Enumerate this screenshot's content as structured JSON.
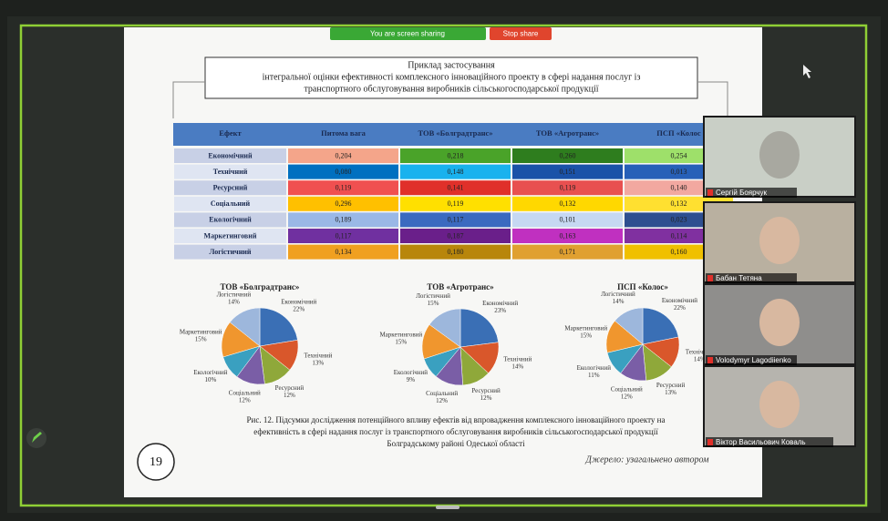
{
  "zoom_bar": {
    "sharing": "You are screen sharing",
    "stop": "Stop share"
  },
  "slide": {
    "title_lines": [
      "Приклад застосування",
      "інтегральної оцінки ефективності комплексного інноваційного проекту в сфері надання послуг із",
      "транспортного обслуговування виробників сільськогосподарської продукції"
    ],
    "table": {
      "header": [
        "Ефект",
        "Питома вага",
        "ТОВ «Болградтранс»",
        "ТОВ «Агротранс»",
        "ПСП «Колос"
      ],
      "rows": [
        [
          "Економічний",
          "0,204",
          "0,218",
          "0,260",
          "0,254"
        ],
        [
          "Технічний",
          "0,080",
          "0,148",
          "0,151",
          "0,013"
        ],
        [
          "Ресурсний",
          "0,119",
          "0,141",
          "0,119",
          "0,140"
        ],
        [
          "Соціальний",
          "0,296",
          "0,119",
          "0,132",
          "0,132"
        ],
        [
          "Екологічний",
          "0,189",
          "0,117",
          "0,101",
          "0,023"
        ],
        [
          "Маркетинговий",
          "0,117",
          "0,187",
          "0,163",
          "0,114"
        ],
        [
          "Логістичний",
          "0,134",
          "0,180",
          "0,171",
          "0,160"
        ]
      ]
    },
    "pies": [
      {
        "title": "ТОВ «Болградтранс»",
        "slices": [
          {
            "name": "Економічний",
            "value": 22,
            "label": "22%"
          },
          {
            "name": "Технічний",
            "value": 13,
            "label": "13%"
          },
          {
            "name": "Ресурсний",
            "value": 12,
            "label": "12%"
          },
          {
            "name": "Соціальний",
            "value": 12,
            "label": "12%"
          },
          {
            "name": "Екологічний",
            "value": 10,
            "label": "10%"
          },
          {
            "name": "Маркетинговий",
            "value": 15,
            "label": "15%"
          },
          {
            "name": "Логістичний",
            "value": 14,
            "label": "14%"
          }
        ]
      },
      {
        "title": "ТОВ «Агротранс»",
        "slices": [
          {
            "name": "Економічний",
            "value": 23,
            "label": "23%"
          },
          {
            "name": "Технічний",
            "value": 14,
            "label": "14%"
          },
          {
            "name": "Ресурсний",
            "value": 12,
            "label": "12%"
          },
          {
            "name": "Соціальний",
            "value": 12,
            "label": "12%"
          },
          {
            "name": "Екологічний",
            "value": 9,
            "label": "9%"
          },
          {
            "name": "Маркетинговий",
            "value": 15,
            "label": "15%"
          },
          {
            "name": "Логістичний",
            "value": 15,
            "label": "15%"
          }
        ]
      },
      {
        "title": "ПСП «Колос»",
        "slices": [
          {
            "name": "Економічний",
            "value": 22,
            "label": "22%"
          },
          {
            "name": "Технічний",
            "value": 14,
            "label": "14%"
          },
          {
            "name": "Ресурсний",
            "value": 13,
            "label": "13%"
          },
          {
            "name": "Соціальний",
            "value": 12,
            "label": "12%"
          },
          {
            "name": "Екологічний",
            "value": 11,
            "label": "11%"
          },
          {
            "name": "Маркетинговий",
            "value": 15,
            "label": "15%"
          },
          {
            "name": "Логістичний",
            "value": 14,
            "label": "14%"
          }
        ]
      }
    ],
    "caption_lines": [
      "Рис. 12. Підсумки дослідження потенційного впливу ефектів від впровадження комплексного інноваційного проекту на",
      "ефективність в сфері надання послуг із транспортного обслуговування виробників сільськогосподарської продукції",
      "Болградському районі Одеської області"
    ],
    "source": "Джерело: узагальнено автором",
    "page_number": 19
  },
  "participants": [
    "Сергій Боярчук",
    "Бабан Тетяна",
    "Volodymyr Lagodiienko",
    "Віктор Васильович Коваль"
  ]
}
